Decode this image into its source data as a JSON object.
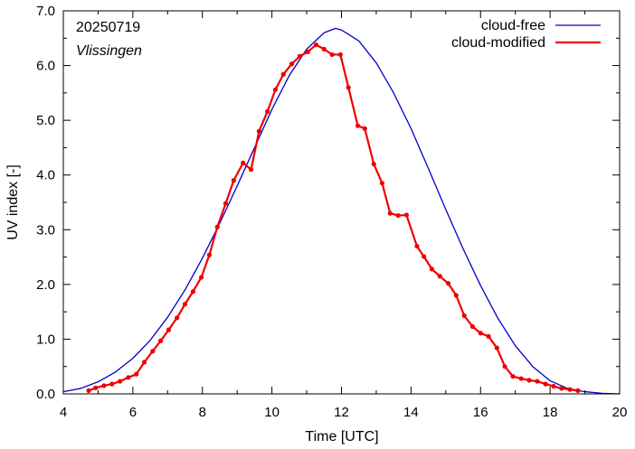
{
  "chart_data": {
    "type": "line",
    "title": "",
    "xlabel": "Time  [UTC]",
    "ylabel": "UV index  [-]",
    "xlim": [
      4,
      20
    ],
    "ylim": [
      0,
      7
    ],
    "x_ticks": [
      "4",
      "6",
      "8",
      "10",
      "12",
      "14",
      "16",
      "18",
      "20"
    ],
    "y_ticks": [
      "0.0",
      "1.0",
      "2.0",
      "3.0",
      "4.0",
      "5.0",
      "6.0",
      "7.0"
    ],
    "grid": false,
    "legend_position": "top-right",
    "annotations": [
      "20250719",
      "Vlissingen"
    ],
    "series": [
      {
        "name": "cloud-free",
        "color": "#0000cc",
        "style": "line",
        "x": [
          4.0,
          4.5,
          5.0,
          5.5,
          6.0,
          6.5,
          7.0,
          7.5,
          8.0,
          8.5,
          9.0,
          9.5,
          10.0,
          10.5,
          11.0,
          11.5,
          11.83,
          12.0,
          12.5,
          13.0,
          13.5,
          14.0,
          14.5,
          15.0,
          15.5,
          16.0,
          16.5,
          17.0,
          17.5,
          18.0,
          18.5,
          19.0,
          19.5,
          20.0
        ],
        "y": [
          0.04,
          0.1,
          0.22,
          0.4,
          0.65,
          0.98,
          1.4,
          1.9,
          2.48,
          3.12,
          3.8,
          4.5,
          5.2,
          5.82,
          6.3,
          6.6,
          6.68,
          6.65,
          6.45,
          6.05,
          5.5,
          4.85,
          4.12,
          3.37,
          2.65,
          1.98,
          1.38,
          0.88,
          0.5,
          0.24,
          0.1,
          0.04,
          0.01,
          0.0
        ]
      },
      {
        "name": "cloud-modified",
        "color": "#ee0000",
        "style": "line-points",
        "x": [
          4.73,
          4.93,
          5.17,
          5.4,
          5.63,
          5.87,
          6.1,
          6.33,
          6.57,
          6.8,
          7.03,
          7.27,
          7.5,
          7.73,
          7.97,
          8.2,
          8.43,
          8.67,
          8.9,
          9.17,
          9.4,
          9.63,
          9.87,
          10.1,
          10.33,
          10.57,
          10.8,
          11.03,
          11.27,
          11.5,
          11.73,
          11.97,
          12.2,
          12.47,
          12.67,
          12.93,
          13.17,
          13.4,
          13.63,
          13.87,
          14.17,
          14.37,
          14.6,
          14.83,
          15.07,
          15.3,
          15.53,
          15.77,
          16.0,
          16.23,
          16.47,
          16.7,
          16.93,
          17.17,
          17.4,
          17.63,
          17.87,
          18.1,
          18.33,
          18.57,
          18.8
        ],
        "y": [
          0.06,
          0.11,
          0.15,
          0.18,
          0.23,
          0.3,
          0.36,
          0.58,
          0.78,
          0.97,
          1.17,
          1.39,
          1.64,
          1.87,
          2.13,
          2.54,
          3.05,
          3.48,
          3.9,
          4.22,
          4.1,
          4.8,
          5.16,
          5.56,
          5.84,
          6.03,
          6.17,
          6.25,
          6.38,
          6.3,
          6.2,
          6.2,
          5.6,
          4.9,
          4.85,
          4.2,
          3.85,
          3.3,
          3.26,
          3.27,
          2.7,
          2.51,
          2.28,
          2.15,
          2.02,
          1.8,
          1.43,
          1.23,
          1.11,
          1.05,
          0.84,
          0.5,
          0.32,
          0.28,
          0.25,
          0.23,
          0.18,
          0.14,
          0.1,
          0.08,
          0.06
        ]
      }
    ]
  }
}
